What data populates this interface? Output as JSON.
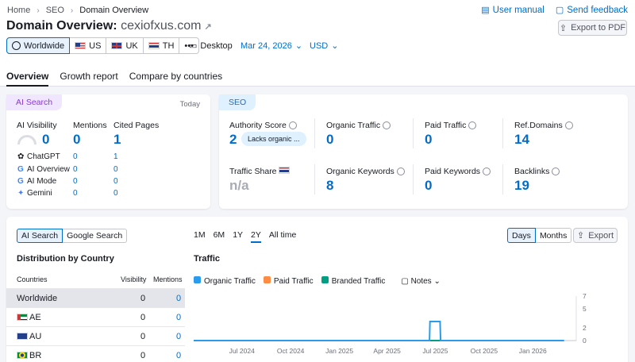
{
  "breadcrumb": [
    "Home",
    "SEO",
    "Domain Overview"
  ],
  "top_links": {
    "manual": "User manual",
    "feedback": "Send feedback"
  },
  "title": {
    "prefix": "Domain Overview:",
    "domain": "cexiofxus.com"
  },
  "export_pdf": "Export to PDF",
  "databases": [
    {
      "label": "Worldwide",
      "flag": "globe"
    },
    {
      "label": "US",
      "flag": "us"
    },
    {
      "label": "UK",
      "flag": "uk"
    },
    {
      "label": "TH",
      "flag": "th"
    }
  ],
  "more_label": "•••",
  "device": "Desktop",
  "date": "Mar 24, 2026",
  "currency": "USD",
  "tabs": [
    "Overview",
    "Growth report",
    "Compare by countries"
  ],
  "ai_card": {
    "pill": "AI Search",
    "today": "Today",
    "headers": {
      "visibility": "AI Visibility",
      "mentions": "Mentions",
      "cited": "Cited Pages"
    },
    "totals": {
      "visibility": "0",
      "mentions": "0",
      "cited": "1"
    },
    "rows": [
      {
        "name": "ChatGPT",
        "mentions": "0",
        "cited": "1"
      },
      {
        "name": "AI Overview",
        "mentions": "0",
        "cited": "0"
      },
      {
        "name": "AI Mode",
        "mentions": "0",
        "cited": "0"
      },
      {
        "name": "Gemini",
        "mentions": "0",
        "cited": "0"
      }
    ]
  },
  "seo_card": {
    "pill": "SEO",
    "authority_label": "Authority Score",
    "authority_value": "2",
    "authority_badge": "Lacks organic ...",
    "organic_traffic_label": "Organic Traffic",
    "organic_traffic_value": "0",
    "paid_traffic_label": "Paid Traffic",
    "paid_traffic_value": "0",
    "ref_domains_label": "Ref.Domains",
    "ref_domains_value": "14",
    "traffic_share_label": "Traffic Share",
    "traffic_share_value": "n/a",
    "organic_keywords_label": "Organic Keywords",
    "organic_keywords_value": "8",
    "paid_keywords_label": "Paid Keywords",
    "paid_keywords_value": "0",
    "backlinks_label": "Backlinks",
    "backlinks_value": "19"
  },
  "bottom": {
    "toggle": [
      "AI Search",
      "Google Search"
    ],
    "periods": [
      "1M",
      "6M",
      "1Y",
      "2Y",
      "All time"
    ],
    "active_period": "2Y",
    "granularity": [
      "Days",
      "Months"
    ],
    "export": "Export",
    "dist_title": "Distribution by Country",
    "table_headers": {
      "country": "Countries",
      "visibility": "Visibility",
      "mentions": "Mentions"
    },
    "table_rows": [
      {
        "country": "Worldwide",
        "visibility": "0",
        "mentions": "0"
      },
      {
        "country": "AE",
        "visibility": "0",
        "mentions": "0"
      },
      {
        "country": "AU",
        "visibility": "0",
        "mentions": "0"
      },
      {
        "country": "BR",
        "visibility": "0",
        "mentions": "0"
      }
    ],
    "traffic_title": "Traffic",
    "legend": {
      "organic": "Organic Traffic",
      "paid": "Paid Traffic",
      "branded": "Branded Traffic",
      "notes": "Notes"
    }
  },
  "colors": {
    "accent": "#006dca",
    "organic": "#2b9ced",
    "paid": "#ff8c43",
    "branded": "#009f81",
    "ai_pill": "#f1e6ff",
    "seo_pill": "#dff0ff"
  },
  "chart_data": {
    "type": "line",
    "title": "Traffic",
    "x_ticks": [
      "Jul 2024",
      "Oct 2024",
      "Jan 2025",
      "Apr 2025",
      "Jul 2025",
      "Oct 2025",
      "Jan 2026"
    ],
    "y_ticks": [
      0,
      2,
      5,
      7
    ],
    "ylim": [
      0,
      7
    ],
    "series": [
      {
        "name": "Organic Traffic",
        "color": "#2b9ced",
        "x": [
          "2024-04",
          "2025-06-20",
          "2025-06-21",
          "2025-07-10",
          "2025-07-11",
          "2026-03"
        ],
        "values": [
          0,
          0,
          3,
          3,
          0,
          0
        ]
      },
      {
        "name": "Branded Traffic",
        "color": "#009f81",
        "x": [
          "2024-04",
          "2026-03"
        ],
        "values": [
          0,
          0
        ]
      }
    ]
  }
}
